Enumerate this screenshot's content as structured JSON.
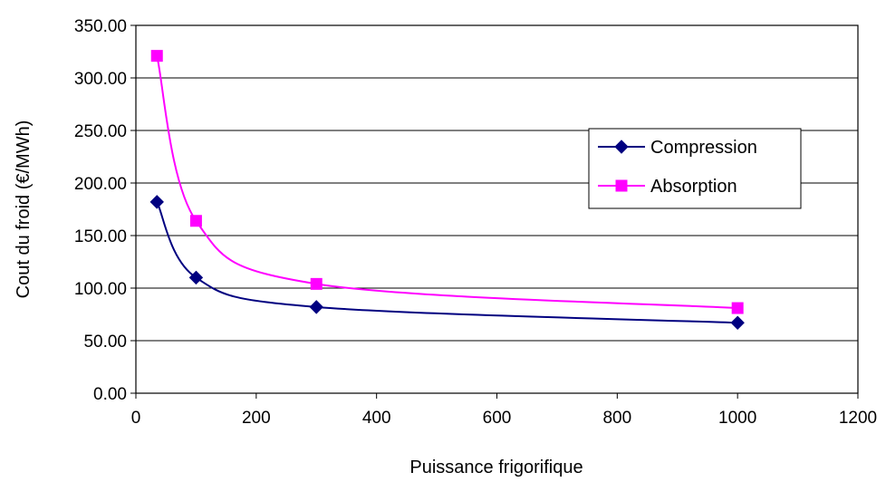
{
  "chart_data": {
    "type": "line",
    "title": "",
    "xlabel": "Puissance frigorifique",
    "ylabel": "Cout du froid (€/MWh)",
    "xlim": [
      0,
      1200
    ],
    "ylim": [
      0,
      350
    ],
    "x_ticks": [
      0,
      200,
      400,
      600,
      800,
      1000,
      1200
    ],
    "x_tick_labels": [
      "0",
      "200",
      "400",
      "600",
      "800",
      "1000",
      "1200"
    ],
    "y_ticks": [
      0,
      50,
      100,
      150,
      200,
      250,
      300,
      350
    ],
    "y_tick_labels": [
      "0.00",
      "50.00",
      "100.00",
      "150.00",
      "200.00",
      "250.00",
      "300.00",
      "350.00"
    ],
    "grid": "horizontal",
    "legend_position": "right",
    "series": [
      {
        "name": "Compression",
        "color": "#000080",
        "marker": "diamond",
        "x": [
          35,
          100,
          300,
          1000
        ],
        "values": [
          182,
          110,
          82,
          67
        ]
      },
      {
        "name": "Absorption",
        "color": "#FF00FF",
        "marker": "square",
        "x": [
          35,
          100,
          300,
          1000
        ],
        "values": [
          321,
          164,
          104,
          81
        ]
      }
    ]
  }
}
